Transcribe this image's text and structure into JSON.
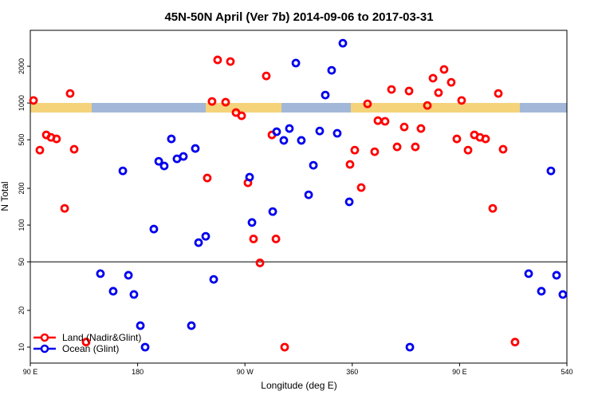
{
  "chart_data": {
    "type": "scatter",
    "title": "45N-50N April (Ver 7b)   2014-09-06 to 2017-03-31",
    "x_label": "Longitude (deg E)",
    "y_label": "N Total",
    "log_y": true,
    "reference_line": 50,
    "legend": "bottom-left",
    "xlim": [
      90,
      540
    ],
    "xticks": [
      {
        "value": 90,
        "label": "90 E"
      },
      180,
      {
        "value": 270,
        "label": "90 W"
      },
      360,
      {
        "value": 450,
        "label": "90 E"
      },
      540
    ],
    "ylim": [
      7.4,
      3940
    ],
    "yticks": [
      10,
      20,
      50,
      100,
      200,
      500,
      1000,
      2000
    ],
    "series": [
      {
        "name": "Land (Nadir&Glint)",
        "color": "#ff0000",
        "x": [
          92.7,
          98,
          103.4,
          107.4,
          112,
          118.8,
          123.4,
          126.8,
          136.8,
          238.4,
          242.4,
          247.1,
          253.8,
          257.8,
          262.5,
          267.2,
          272.5,
          277.2,
          282.6,
          287.9,
          292.6,
          296,
          303.3,
          358.1,
          362.1,
          367.5,
          372.8,
          378.8,
          381.5,
          387.5,
          392.9,
          397.6,
          403.6,
          407.6,
          412.9,
          417.6,
          423,
          427.7,
          432.3,
          437,
          443,
          447.7,
          451.7,
          457.1,
          462.4,
          467.1,
          471.8,
          477.8,
          482.5,
          486.5,
          496.5
        ],
        "values": [
          1050,
          411,
          548,
          523,
          508,
          137,
          1197,
          418,
          11,
          243,
          1030,
          2255,
          1016,
          2187,
          835,
          786,
          222,
          77,
          49,
          1667,
          548,
          77,
          10,
          314,
          411,
          203,
          984,
          399,
          717,
          708,
          1291,
          437,
          636,
          1254,
          437,
          618,
          955,
          1597,
          1215,
          1884,
          1478,
          508,
          1050,
          411,
          548,
          523,
          508,
          137,
          1197,
          418,
          11
        ]
      },
      {
        "name": "Ocean (Glint)",
        "color": "#0000ee",
        "x": [
          148.8,
          159.5,
          167.6,
          172.3,
          176.9,
          182.3,
          186.3,
          193.6,
          197.7,
          202.3,
          208.3,
          213,
          218.4,
          225.1,
          228.4,
          231.1,
          237.1,
          243.8,
          273.9,
          275.9,
          293.3,
          296.6,
          302.6,
          307.3,
          312.7,
          317.3,
          323.4,
          327.4,
          332.7,
          337.4,
          342.7,
          347.4,
          352.1,
          357.5,
          408.3,
          507.9,
          518.6,
          526.6,
          531.3,
          536.6
        ],
        "values": [
          40,
          28.7,
          278,
          38.8,
          27,
          15,
          10,
          92.7,
          333,
          305,
          508,
          349,
          365,
          15,
          424,
          71.8,
          80.9,
          35.9,
          247,
          105,
          129,
          582,
          494,
          618,
          2125,
          494,
          177,
          309,
          590,
          1162,
          1853,
          565,
          3090,
          155,
          10,
          40,
          28.7,
          278,
          38.8,
          27
        ]
      }
    ]
  }
}
